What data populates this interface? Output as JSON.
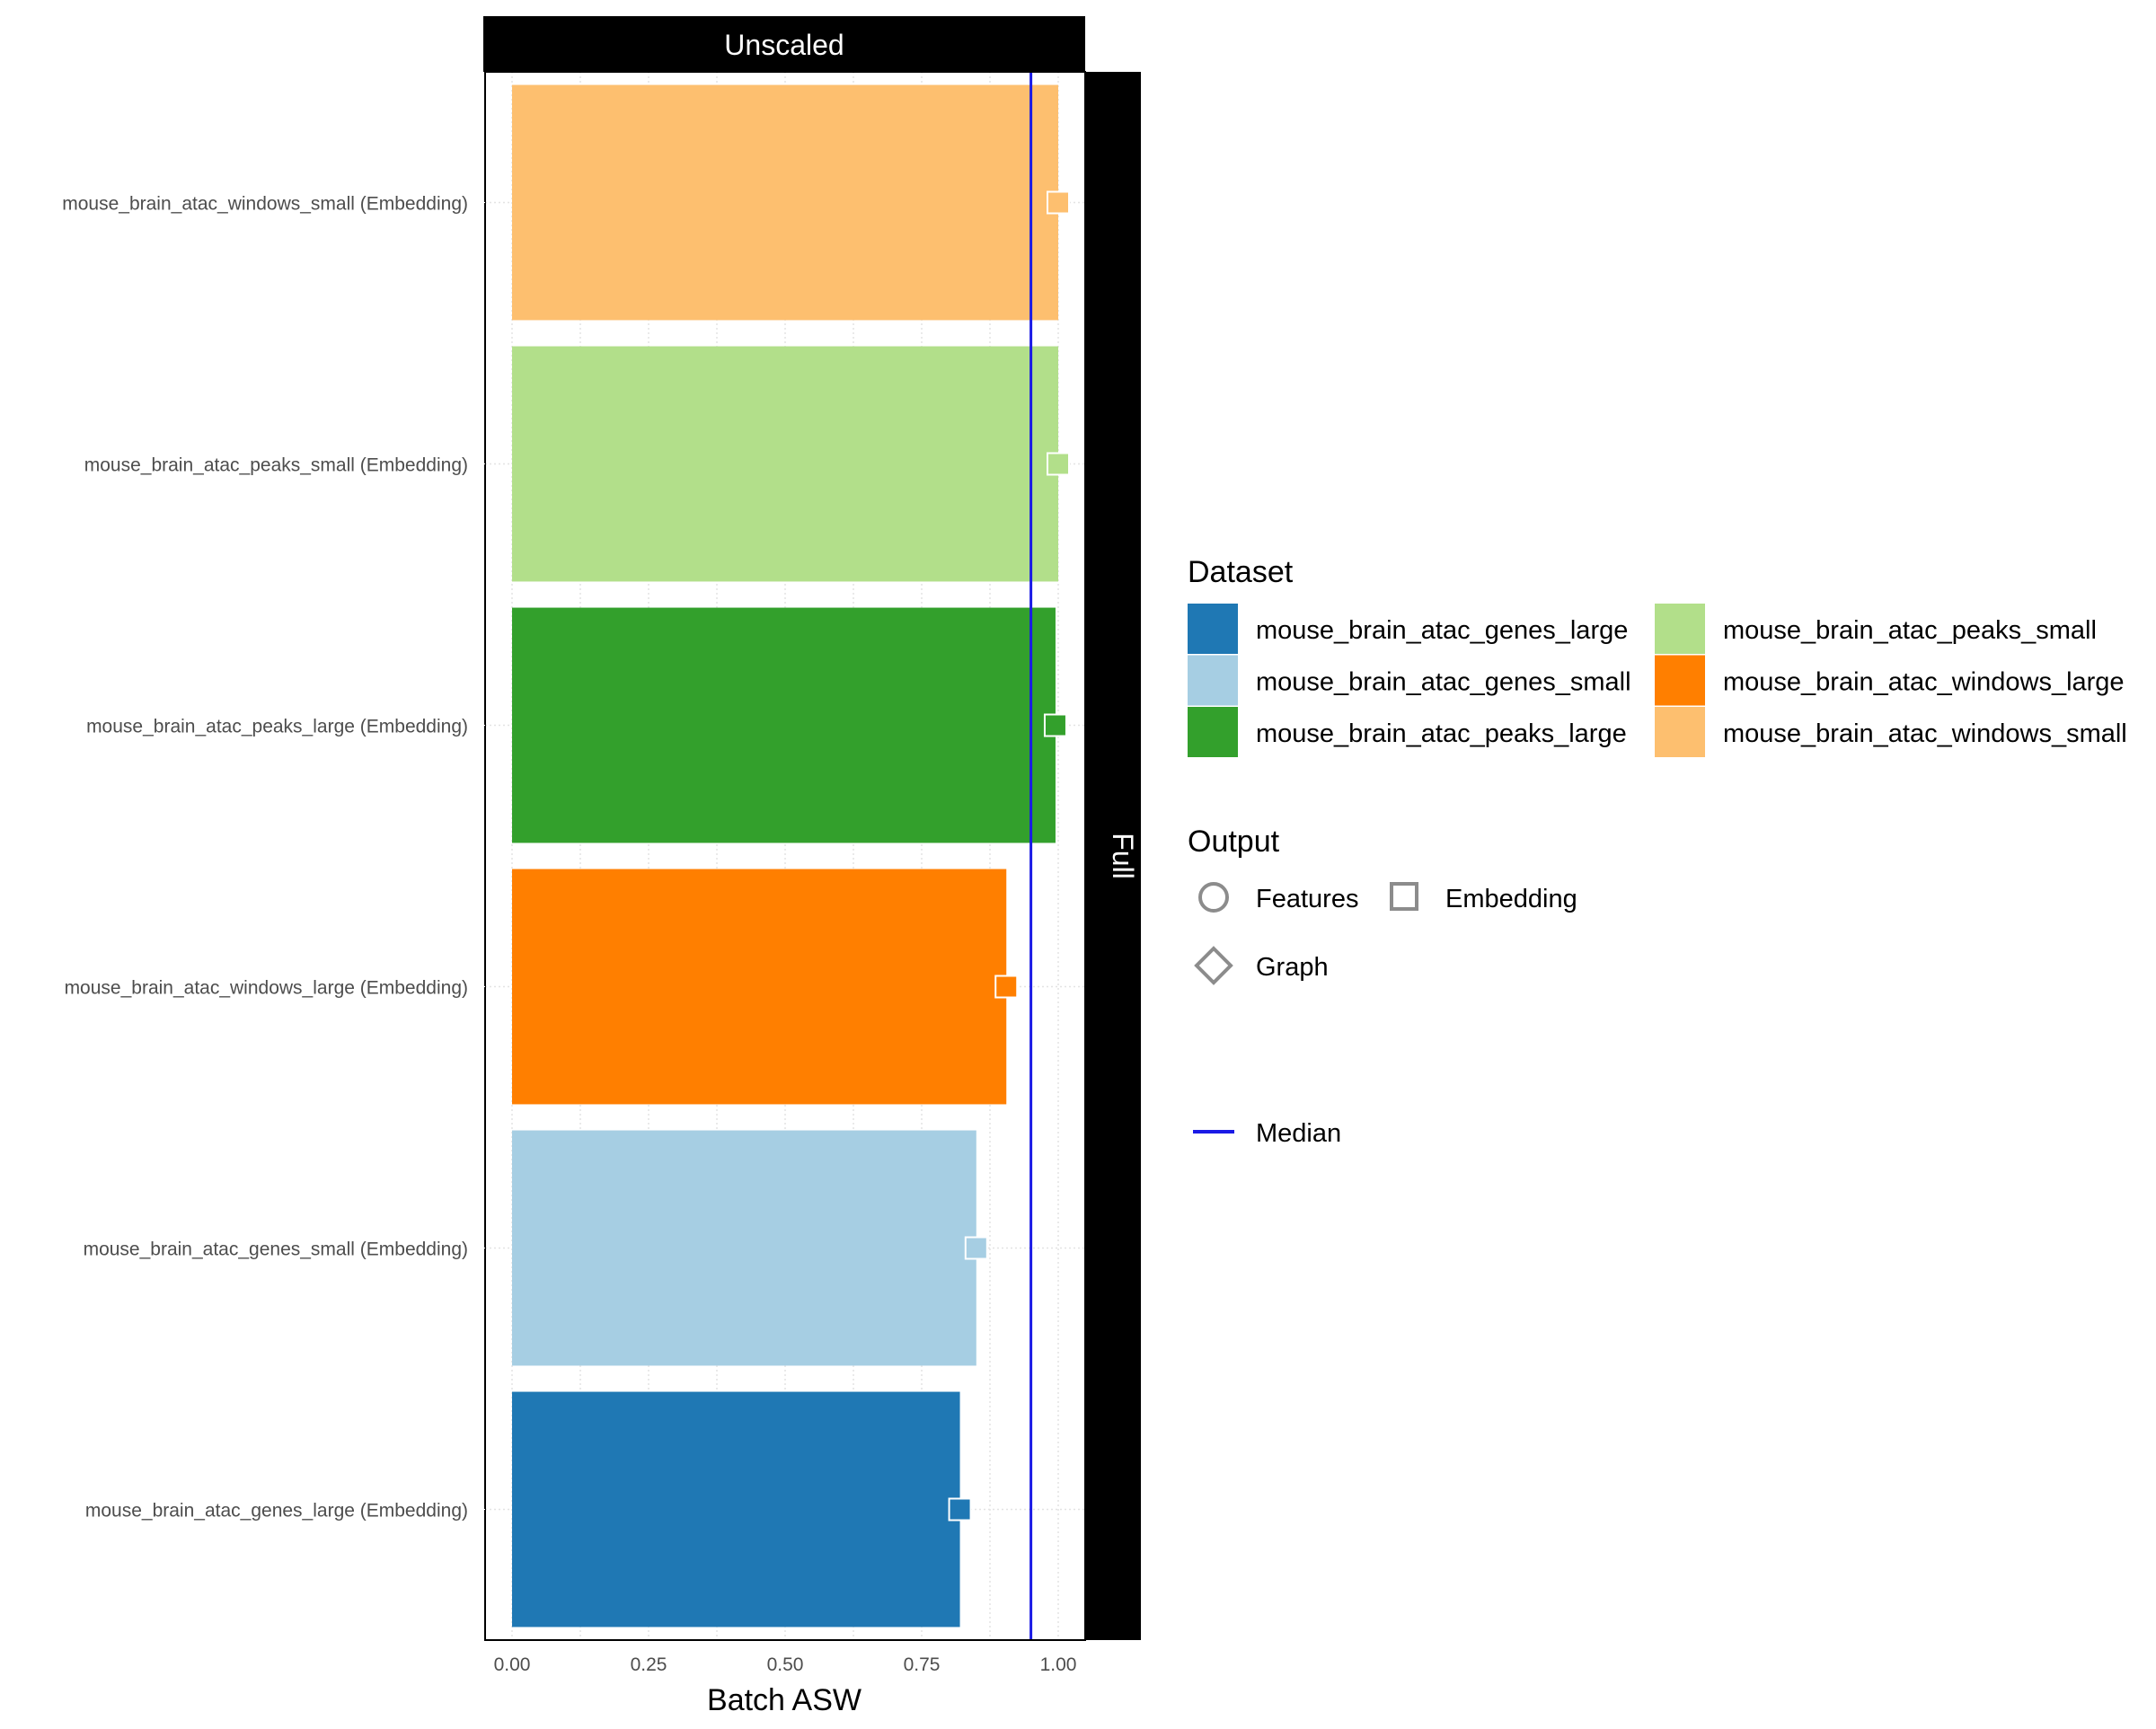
{
  "chart_data": {
    "type": "bar",
    "orientation": "horizontal",
    "facet_top_label": "Unscaled",
    "facet_right_label": "Full",
    "xlabel": "Batch ASW",
    "xlim": [
      -0.05,
      1.05
    ],
    "x_ticks": [
      "0.00",
      "0.25",
      "0.50",
      "0.75",
      "1.00"
    ],
    "x_tick_values": [
      0,
      0.25,
      0.5,
      0.75,
      1.0
    ],
    "median": 0.95,
    "grid": true,
    "categories": [
      "mouse_brain_atac_windows_small (Embedding)",
      "mouse_brain_atac_peaks_small (Embedding)",
      "mouse_brain_atac_peaks_large (Embedding)",
      "mouse_brain_atac_windows_large (Embedding)",
      "mouse_brain_atac_genes_small (Embedding)",
      "mouse_brain_atac_genes_large (Embedding)"
    ],
    "values": [
      1.0,
      1.0,
      0.995,
      0.905,
      0.85,
      0.82
    ],
    "colors": [
      "#FDBF6F",
      "#B2DF8A",
      "#33A02C",
      "#FF7F00",
      "#A6CEE3",
      "#1F78B4"
    ],
    "legend_placement": "right",
    "legend": {
      "dataset_title": "Dataset",
      "dataset_items": [
        {
          "label": "mouse_brain_atac_genes_large",
          "color": "#1F78B4"
        },
        {
          "label": "mouse_brain_atac_genes_small",
          "color": "#A6CEE3"
        },
        {
          "label": "mouse_brain_atac_peaks_large",
          "color": "#33A02C"
        },
        {
          "label": "mouse_brain_atac_peaks_small",
          "color": "#B2DF8A"
        },
        {
          "label": "mouse_brain_atac_windows_large",
          "color": "#FF7F00"
        },
        {
          "label": "mouse_brain_atac_windows_small",
          "color": "#FDBF6F"
        }
      ],
      "output_title": "Output",
      "output_items": [
        {
          "label": "Features",
          "shape": "circle"
        },
        {
          "label": "Embedding",
          "shape": "square"
        },
        {
          "label": "Graph",
          "shape": "diamond"
        }
      ],
      "median_label": "Median",
      "median_color": "#1A1AE6"
    }
  }
}
